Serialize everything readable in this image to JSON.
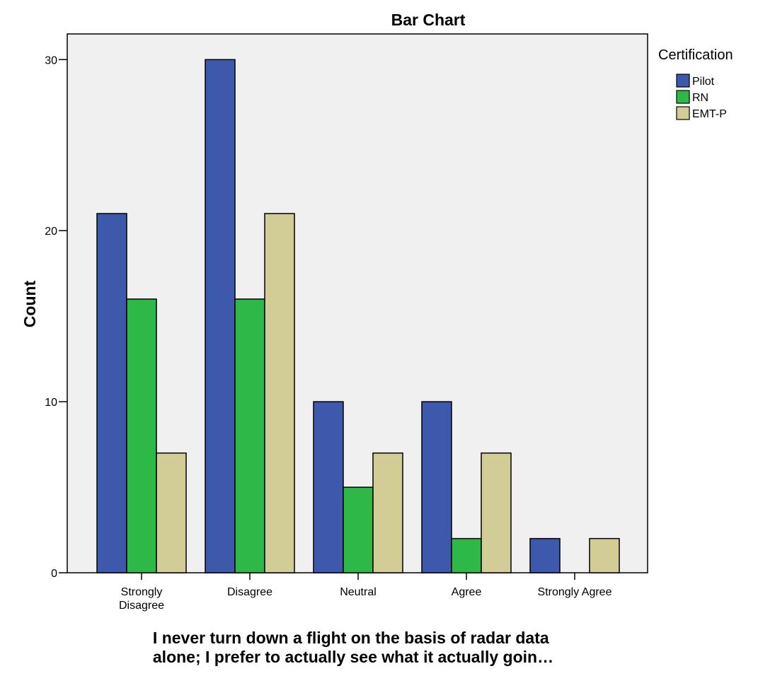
{
  "chart_data": {
    "type": "bar",
    "title": "Bar Chart",
    "xlabel": "I never turn down a flight on the basis of radar data alone; I prefer to actually see what it actually goin…",
    "xlabel_lines": [
      "I never turn down a flight on the basis of radar data",
      "alone; I prefer to actually see what it actually goin…"
    ],
    "ylabel": "Count",
    "ylim": [
      0,
      31.5
    ],
    "yticks": [
      0,
      10,
      20,
      30
    ],
    "grid": false,
    "categories": [
      "Strongly Disagree",
      "Disagree",
      "Neutral",
      "Agree",
      "Strongly Agree"
    ],
    "category_labels": [
      [
        "Strongly",
        "Disagree"
      ],
      [
        "Disagree"
      ],
      [
        "Neutral"
      ],
      [
        "Agree"
      ],
      [
        "Strongly Agree"
      ]
    ],
    "legend": {
      "title": "Certification",
      "placement": "right"
    },
    "series": [
      {
        "name": "Pilot",
        "color": "#3e58ac",
        "values": [
          21,
          30,
          10,
          10,
          2
        ]
      },
      {
        "name": "RN",
        "color": "#2eb848",
        "values": [
          16,
          16,
          5,
          2,
          0
        ]
      },
      {
        "name": "EMT-P",
        "color": "#d2cc96",
        "values": [
          7,
          21,
          7,
          7,
          2
        ]
      }
    ],
    "colors": {
      "plot_background": "#f0f0f0",
      "bar_outline": "#000000"
    }
  }
}
